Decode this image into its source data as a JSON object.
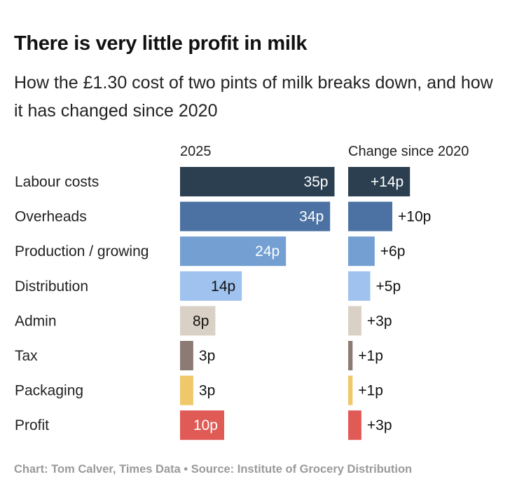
{
  "title": "There is very little profit in milk",
  "subtitle": "How the £1.30 cost of two pints of milk breaks down, and how it has changed since 2020",
  "source": "Chart: Tom Calver, Times Data • Source: Institute of Grocery Distribution",
  "chart_data": {
    "type": "bar",
    "column_headers": [
      "2025",
      "Change since 2020"
    ],
    "categories": [
      "Labour costs",
      "Overheads",
      "Production / growing",
      "Distribution",
      "Admin",
      "Tax",
      "Packaging",
      "Profit"
    ],
    "series": [
      {
        "values": [
          35,
          34,
          24,
          14,
          8,
          3,
          3,
          10
        ],
        "labels": [
          "35p",
          "34p",
          "24p",
          "14p",
          "8p",
          "3p",
          "3p",
          "10p"
        ]
      },
      {
        "values": [
          14,
          10,
          6,
          5,
          3,
          1,
          1,
          3
        ],
        "labels": [
          "+14p",
          "+10p",
          "+6p",
          "+5p",
          "+3p",
          "+1p",
          "+1p",
          "+3p"
        ]
      }
    ],
    "colors": [
      "#2b3f50",
      "#4c72a3",
      "#739fd2",
      "#9fc2ee",
      "#d9d1c5",
      "#8c7b74",
      "#efc86a",
      "#e05a56"
    ],
    "label_colors": [
      "#ffffff",
      "#ffffff",
      "#ffffff",
      "#111111",
      "#111111",
      "#111111",
      "#111111",
      "#ffffff"
    ],
    "grid": false
  }
}
